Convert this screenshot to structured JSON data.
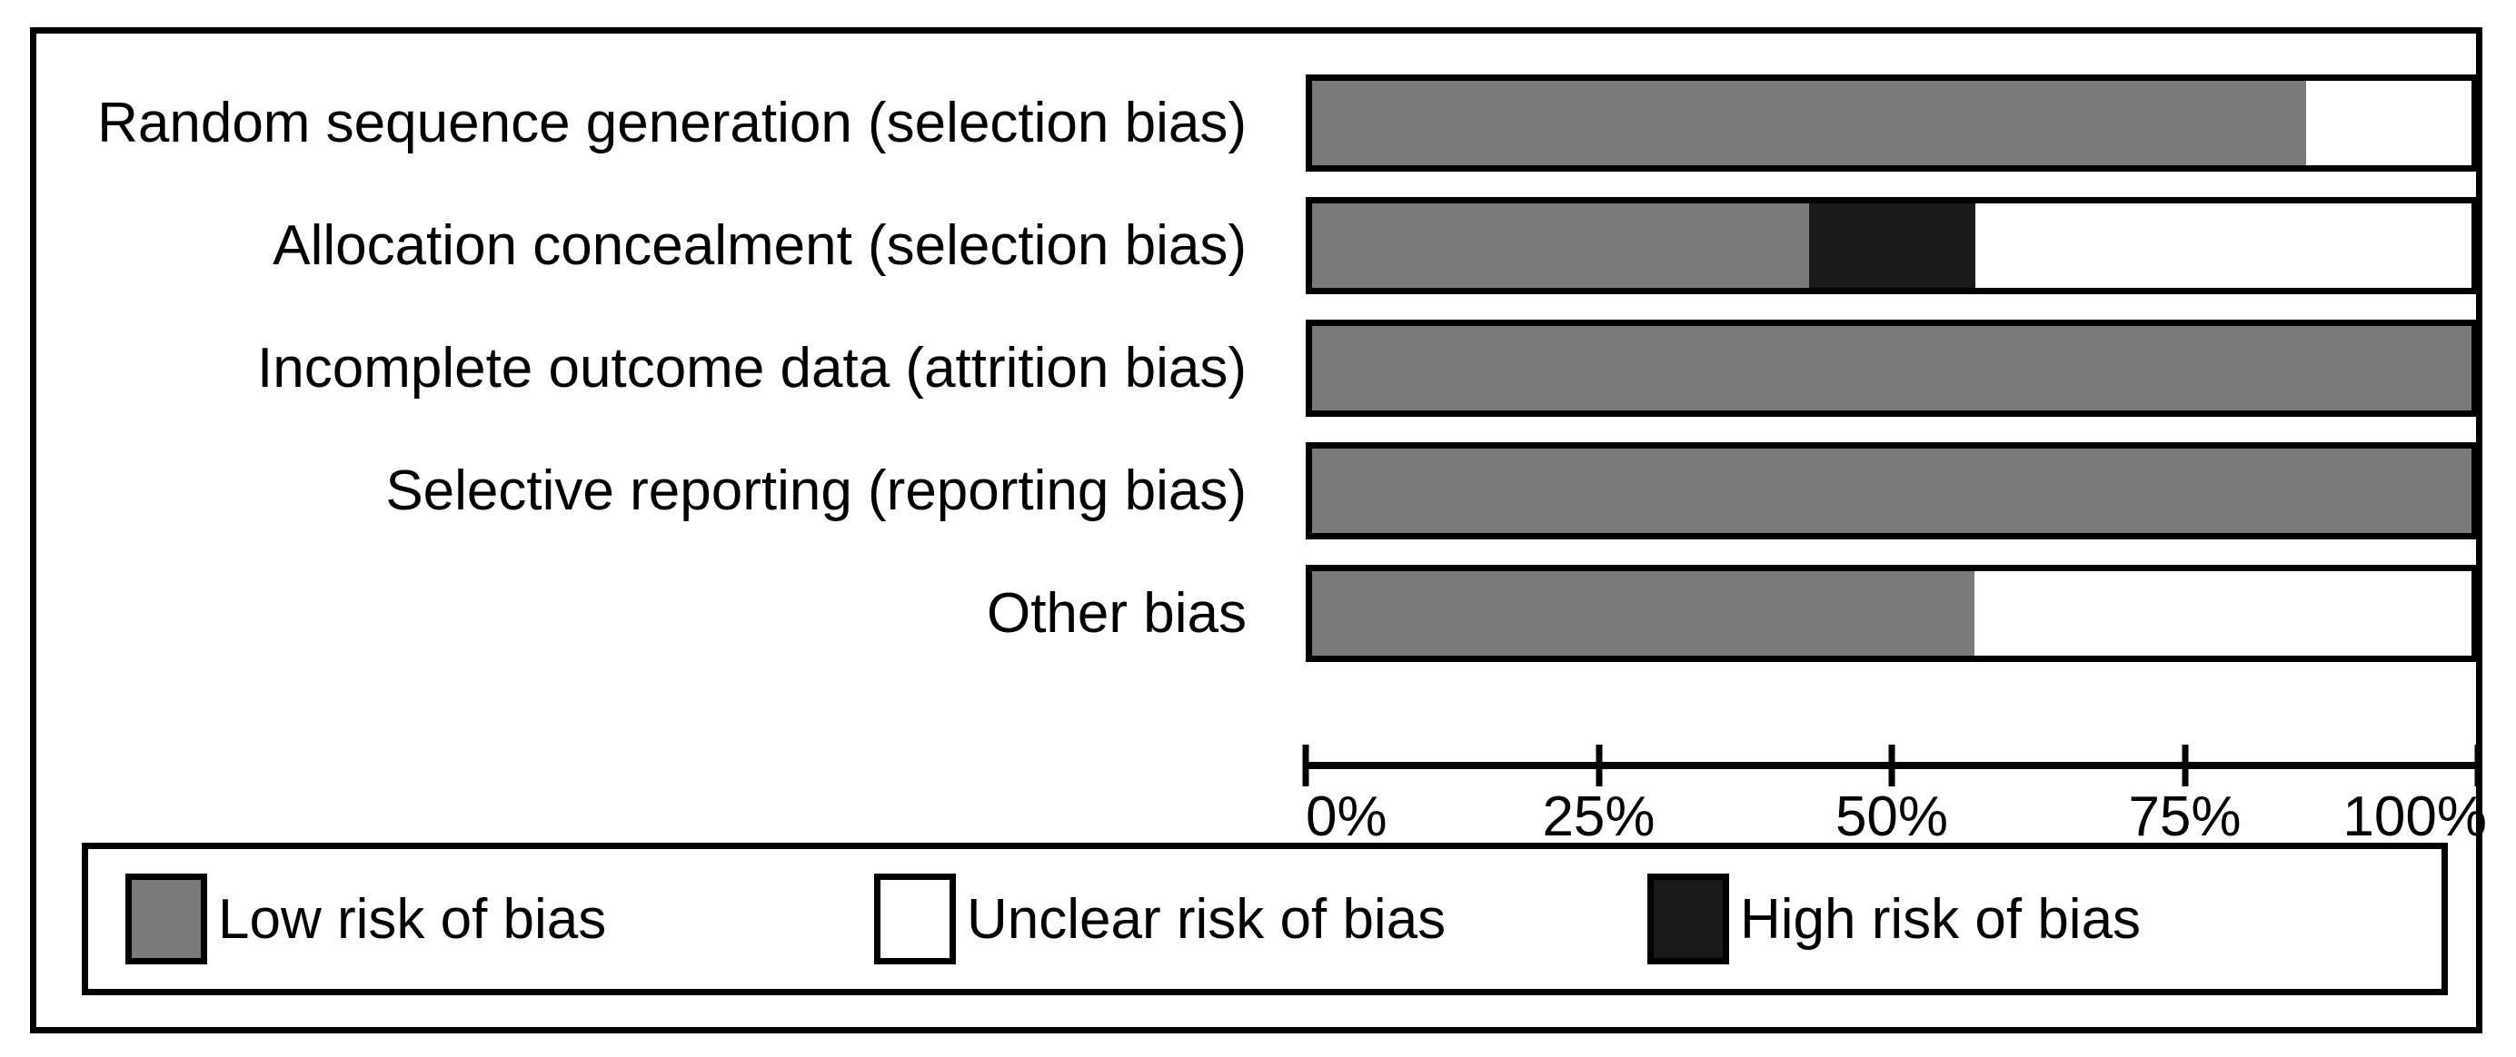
{
  "chart_data": {
    "type": "bar",
    "orientation": "horizontal",
    "stacked": true,
    "unit": "percent",
    "title": "",
    "xlabel": "",
    "ylabel": "",
    "xlim": [
      0,
      100
    ],
    "grid": false,
    "categories": [
      "Random sequence generation (selection bias)",
      "Allocation concealment (selection bias)",
      "Incomplete outcome data (attrition bias)",
      "Selective reporting (reporting bias)",
      "Other bias"
    ],
    "series": [
      {
        "name": "Low risk of bias",
        "color": "#7a7a7a",
        "values": [
          85.7,
          42.9,
          100,
          100,
          57.1
        ]
      },
      {
        "name": "High risk of bias",
        "color": "#1a1a1a",
        "values": [
          0,
          14.3,
          0,
          0,
          0
        ]
      },
      {
        "name": "Unclear risk of bias",
        "color": "#ffffff",
        "values": [
          14.3,
          42.8,
          0,
          0,
          42.9
        ]
      }
    ],
    "x_ticks": [
      {
        "value": 0,
        "label": "0%"
      },
      {
        "value": 25,
        "label": "25%"
      },
      {
        "value": 50,
        "label": "50%"
      },
      {
        "value": 75,
        "label": "75%"
      },
      {
        "value": 100,
        "label": "100%"
      }
    ],
    "legend": {
      "position": "bottom",
      "items": [
        {
          "label": "Low risk of bias",
          "color": "#7a7a7a"
        },
        {
          "label": "Unclear risk of bias",
          "color": "#ffffff"
        },
        {
          "label": "High risk of bias",
          "color": "#1a1a1a"
        }
      ]
    }
  },
  "colors": {
    "border": "#000000",
    "background": "#ffffff",
    "low_risk": "#7a7a7a",
    "unclear_risk": "#ffffff",
    "high_risk": "#1a1a1a"
  }
}
